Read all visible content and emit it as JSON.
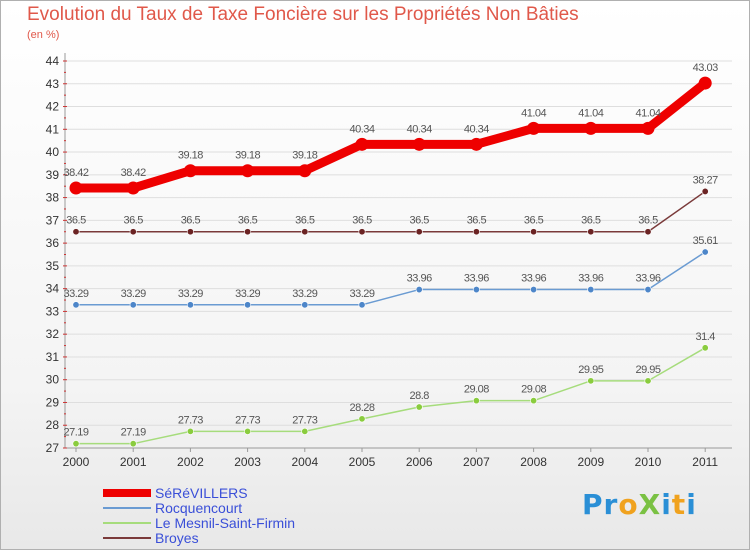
{
  "chart_data": {
    "type": "line",
    "title": "Evolution du Taux de Taxe Foncière sur les Propriétés Non Bâties",
    "ylabel": "(en %)",
    "xlabel": "",
    "ylim": [
      27,
      44
    ],
    "yticks": [
      "27",
      "28",
      "29",
      "30",
      "31",
      "32",
      "33",
      "34",
      "35",
      "36",
      "37",
      "38",
      "39",
      "40",
      "41",
      "42",
      "43",
      "44"
    ],
    "categories": [
      "2000",
      "2001",
      "2002",
      "2003",
      "2004",
      "2005",
      "2006",
      "2007",
      "2008",
      "2009",
      "2010",
      "2011"
    ],
    "series": [
      {
        "name": "SéRéVILLERS",
        "color": "#ee0000",
        "width": 9,
        "values": [
          38.42,
          38.42,
          39.18,
          39.18,
          39.18,
          40.34,
          40.34,
          40.34,
          41.04,
          41.04,
          41.04,
          43.03
        ],
        "labels": [
          "38.42",
          "38.42",
          "39.18",
          "39.18",
          "39.18",
          "40.34",
          "40.34",
          "40.34",
          "41.04",
          "41.04",
          "41.04",
          "43.03"
        ]
      },
      {
        "name": "Rocquencourt",
        "color": "#6a9bd2",
        "dot": "#4d86c9",
        "width": 1.5,
        "values": [
          33.29,
          33.29,
          33.29,
          33.29,
          33.29,
          33.29,
          33.96,
          33.96,
          33.96,
          33.96,
          33.96,
          35.61
        ],
        "labels": [
          "33.29",
          "33.29",
          "33.29",
          "33.29",
          "33.29",
          "33.29",
          "33.96",
          "33.96",
          "33.96",
          "33.96",
          "33.96",
          "35.61"
        ]
      },
      {
        "name": "Le Mesnil-Saint-Firmin",
        "color": "#a6dc7c",
        "dot": "#8acc3e",
        "width": 1.5,
        "values": [
          27.19,
          27.19,
          27.73,
          27.73,
          27.73,
          28.28,
          28.8,
          29.08,
          29.08,
          29.95,
          29.95,
          31.4
        ],
        "labels": [
          "27.19",
          "27.19",
          "27.73",
          "27.73",
          "27.73",
          "28.28",
          "28.8",
          "29.08",
          "29.08",
          "29.95",
          "29.95",
          "31.4"
        ]
      },
      {
        "name": "Broyes",
        "color": "#7a3a3a",
        "dot": "#6b2323",
        "width": 1.5,
        "values": [
          36.5,
          36.5,
          36.5,
          36.5,
          36.5,
          36.5,
          36.5,
          36.5,
          36.5,
          36.5,
          36.5,
          38.27
        ],
        "labels": [
          "36.5",
          "36.5",
          "36.5",
          "36.5",
          "36.5",
          "36.5",
          "36.5",
          "36.5",
          "36.5",
          "36.5",
          "36.5",
          "38.27"
        ]
      }
    ]
  },
  "legend": [
    {
      "label": "SéRéVILLERS"
    },
    {
      "label": "Rocquencourt"
    },
    {
      "label": "Le Mesnil-Saint-Firmin"
    },
    {
      "label": "Broyes"
    }
  ],
  "logo": {
    "text": "ProXiti",
    "letters": [
      "P",
      "r",
      "o",
      "X",
      "i",
      "t",
      "i"
    ],
    "colors": [
      "#2a8fd6",
      "#2a8fd6",
      "#f0a21e",
      "#7ac143",
      "#2a8fd6",
      "#f0a21e",
      "#2a8fd6"
    ]
  }
}
